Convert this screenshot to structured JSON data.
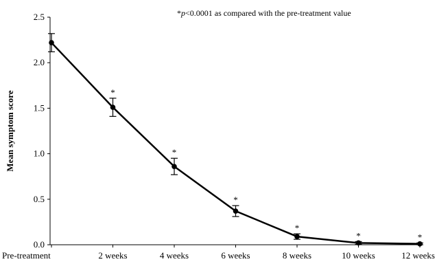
{
  "chart_data": {
    "type": "line",
    "title": "",
    "xlabel": "",
    "ylabel": "Mean symptom score",
    "categories": [
      "Pre-treatment",
      "2 weeks",
      "4 weeks",
      "6 weeks",
      "8 weeks",
      "10 weeks",
      "12 weeks"
    ],
    "series": [
      {
        "values": [
          2.22,
          1.51,
          0.86,
          0.37,
          0.09,
          0.02,
          0.01
        ],
        "error": [
          0.1,
          0.1,
          0.09,
          0.06,
          0.03,
          0.015,
          0.01
        ],
        "significance_marker": [
          "",
          "*",
          "*",
          "*",
          "*",
          "*",
          "*"
        ]
      }
    ],
    "ylim": [
      0,
      2.5
    ],
    "yticks": [
      0.0,
      0.5,
      1.0,
      1.5,
      2.0,
      2.5
    ],
    "ytick_labels": [
      "0.0",
      "0.5",
      "1.0",
      "1.5",
      "2.0",
      "2.5"
    ],
    "grid": false,
    "annotation": {
      "prefix": "*",
      "italic": "p",
      "suffix": "<0.0001 as compared with the pre-treatment value"
    },
    "colors": {
      "line": "#000000",
      "marker": "#000000",
      "axis": "#000000"
    }
  }
}
